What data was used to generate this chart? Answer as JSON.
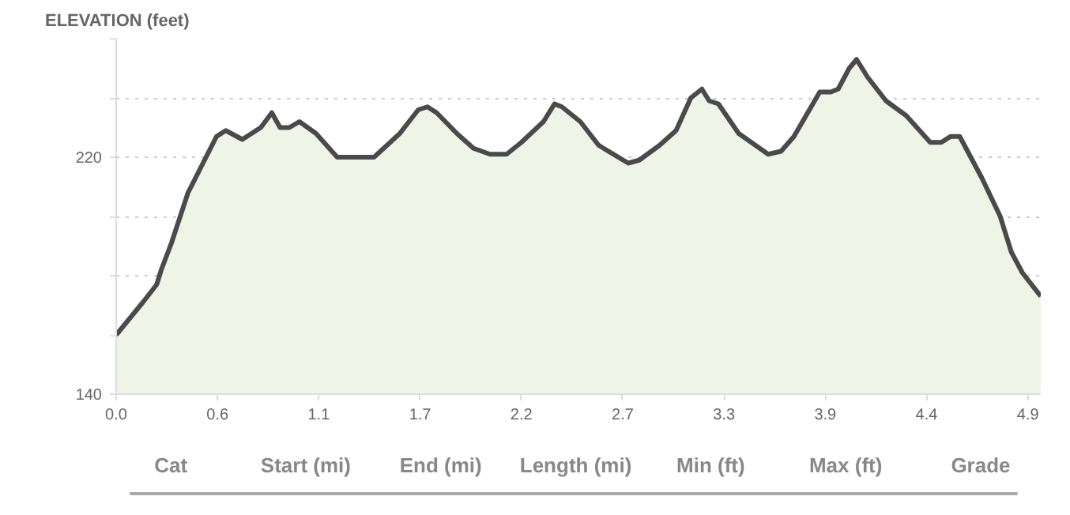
{
  "chart_data": {
    "type": "area",
    "title": "ELEVATION (feet)",
    "x": [
      0.0,
      0.145,
      0.22,
      0.245,
      0.3,
      0.39,
      0.545,
      0.595,
      0.685,
      0.785,
      0.845,
      0.89,
      0.94,
      0.995,
      1.085,
      1.2,
      1.24,
      1.4,
      1.54,
      1.64,
      1.69,
      1.74,
      1.85,
      1.94,
      2.03,
      2.12,
      2.2,
      2.32,
      2.38,
      2.42,
      2.52,
      2.62,
      2.78,
      2.84,
      2.95,
      3.04,
      3.12,
      3.18,
      3.22,
      3.27,
      3.38,
      3.54,
      3.61,
      3.68,
      3.82,
      3.88,
      3.92,
      3.98,
      4.02,
      4.08,
      4.18,
      4.29,
      4.42,
      4.48,
      4.53,
      4.58,
      4.7,
      4.8,
      4.86,
      4.92,
      5.02
    ],
    "series": [
      {
        "color": "#4a4a4a",
        "values": [
          160,
          171,
          177,
          182,
          191,
          208,
          227,
          229,
          226,
          230,
          235,
          230,
          230,
          232,
          228,
          220,
          220,
          220,
          228,
          236,
          237,
          235,
          228,
          223,
          221,
          221,
          225,
          232,
          238,
          237,
          232,
          224,
          218,
          219,
          224,
          229,
          240,
          243,
          239,
          238,
          228,
          221,
          222,
          227,
          242,
          242,
          243,
          250,
          253,
          247,
          239,
          234,
          225,
          225,
          227,
          227,
          213,
          200,
          188,
          181,
          173
        ]
      }
    ],
    "xlim": [
      0,
      5.02
    ],
    "ylim": [
      140,
      260
    ],
    "xticks": [
      {
        "value": 0,
        "label": "0.0"
      },
      {
        "value": 0.55,
        "label": "0.6"
      },
      1.1,
      {
        "value": 1.65,
        "label": "1.7"
      },
      2.2,
      {
        "value": 2.75,
        "label": "2.7"
      },
      3.3,
      {
        "value": 3.85,
        "label": "3.9"
      },
      4.4,
      {
        "value": 4.95,
        "label": "4.9"
      }
    ],
    "yticks": [
      140,
      {
        "value": 160,
        "label": null
      },
      {
        "value": 180,
        "label": null
      },
      {
        "value": 200,
        "label": null
      },
      220,
      {
        "value": 240,
        "label": null
      },
      {
        "value": 260,
        "label": null
      }
    ],
    "grid": "y",
    "annotations": [
      "Cat",
      "Start (mi)",
      "End (mi)",
      "Length (mi)",
      "Min (ft)",
      "Max (ft)",
      "Grade"
    ]
  }
}
